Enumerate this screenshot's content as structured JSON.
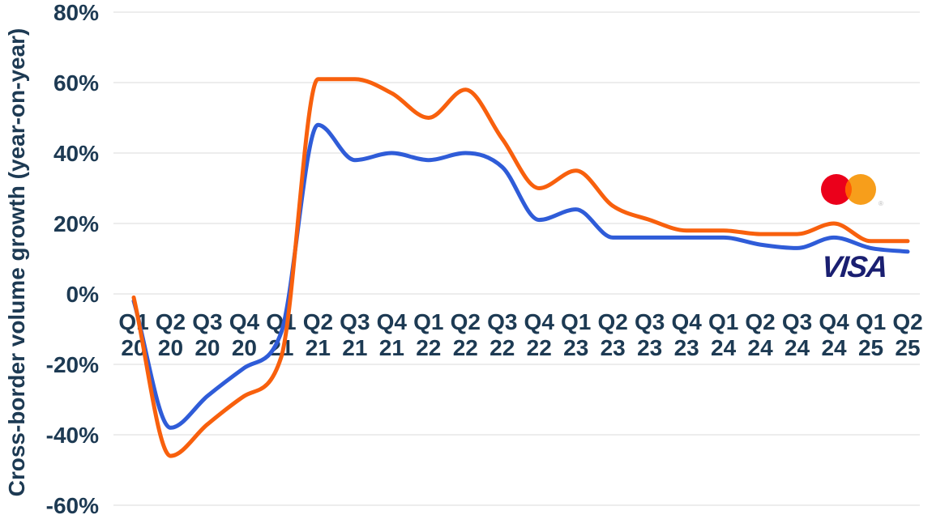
{
  "chart_data": {
    "type": "line",
    "title": "",
    "xlabel": "",
    "ylabel": "Cross-border volume growth (year-on-year)",
    "categories": [
      "Q1 20",
      "Q2 20",
      "Q3 20",
      "Q4 20",
      "Q1 21",
      "Q2 21",
      "Q3 21",
      "Q4 21",
      "Q1 22",
      "Q2 22",
      "Q3 22",
      "Q4 22",
      "Q1 23",
      "Q2 23",
      "Q3 23",
      "Q4 23",
      "Q1 24",
      "Q2 24",
      "Q3 24",
      "Q4 24",
      "Q1 25",
      "Q2 25"
    ],
    "series": [
      {
        "name": "Mastercard",
        "color": "#f8600d",
        "legend_marker": "mastercard-logo",
        "values": [
          -1,
          -46,
          -37,
          -29,
          -18,
          61,
          61,
          57,
          50,
          58,
          44,
          30,
          35,
          25,
          21,
          18,
          18,
          17,
          17,
          20,
          15,
          15
        ]
      },
      {
        "name": "Visa",
        "color": "#2f5cd8",
        "legend_marker": "visa-wordmark",
        "values": [
          -2,
          -38,
          -29,
          -21,
          -11,
          48,
          38,
          40,
          38,
          40,
          36,
          21,
          24,
          16,
          16,
          16,
          16,
          14,
          13,
          16,
          13,
          12
        ]
      }
    ],
    "ylim": [
      -60,
      80
    ],
    "yticks": [
      {
        "value": 80,
        "label": "80%"
      },
      {
        "value": 60,
        "label": "60%"
      },
      {
        "value": 40,
        "label": "40%"
      },
      {
        "value": 20,
        "label": "20%"
      },
      {
        "value": 0,
        "label": "0%"
      },
      {
        "value": -20,
        "label": "-20%"
      },
      {
        "value": -40,
        "label": "-40%"
      },
      {
        "value": -60,
        "label": "-60%"
      }
    ],
    "grid": true,
    "legend_position": "logos placed at right side of plot, above each line end"
  },
  "logos": {
    "visa_text": "VISA",
    "visa_color": "#1a1f71",
    "mastercard_red": "#eb001b",
    "mastercard_orange": "#f79e1b",
    "mastercard_overlap": "#ff5f00",
    "registered_mark": "®"
  },
  "colors": {
    "axis_text": "#1d3a53",
    "gridline": "#ededed",
    "background": "#ffffff"
  }
}
